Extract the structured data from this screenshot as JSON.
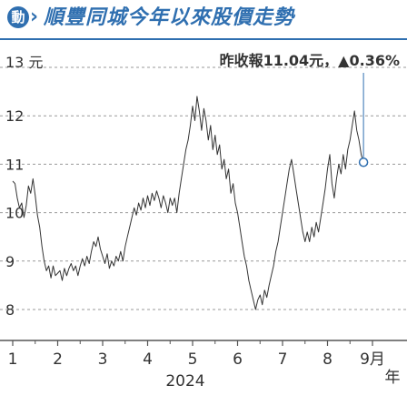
{
  "header": {
    "logo_text": "動",
    "title": "順豐同城今年以來股價走勢",
    "brand_color": "#2f6fb0"
  },
  "chart_data": {
    "type": "line",
    "y_unit_label": "13 元",
    "y_ticks": [
      "12",
      "11",
      "10",
      "9",
      "8"
    ],
    "ylim": [
      7.7,
      13.3
    ],
    "x_ticks": [
      "1",
      "2",
      "3",
      "4",
      "5",
      "6",
      "7",
      "8",
      "9月"
    ],
    "year_label": "2024",
    "year_char": "年",
    "annotation": "昨收報11.04元，▲0.36%",
    "line_color": "#333333",
    "marker_color": "#2f6fb0",
    "grid": true,
    "series": [
      {
        "values": [
          [
            1.0,
            10.65
          ],
          [
            1.05,
            10.6
          ],
          [
            1.1,
            10.3
          ],
          [
            1.15,
            10.1
          ],
          [
            1.2,
            10.2
          ],
          [
            1.25,
            9.9
          ],
          [
            1.3,
            10.15
          ],
          [
            1.35,
            10.55
          ],
          [
            1.4,
            10.4
          ],
          [
            1.45,
            10.7
          ],
          [
            1.5,
            10.35
          ],
          [
            1.55,
            9.95
          ],
          [
            1.6,
            9.7
          ],
          [
            1.65,
            9.3
          ],
          [
            1.7,
            9.0
          ],
          [
            1.75,
            8.8
          ],
          [
            1.8,
            8.9
          ],
          [
            1.85,
            8.65
          ],
          [
            1.9,
            8.9
          ],
          [
            1.95,
            8.7
          ],
          [
            2.0,
            8.75
          ],
          [
            2.05,
            8.8
          ],
          [
            2.1,
            8.6
          ],
          [
            2.15,
            8.85
          ],
          [
            2.2,
            8.7
          ],
          [
            2.25,
            8.85
          ],
          [
            2.3,
            8.95
          ],
          [
            2.35,
            8.8
          ],
          [
            2.4,
            8.9
          ],
          [
            2.45,
            8.7
          ],
          [
            2.5,
            8.9
          ],
          [
            2.55,
            9.05
          ],
          [
            2.6,
            8.9
          ],
          [
            2.65,
            9.1
          ],
          [
            2.7,
            8.95
          ],
          [
            2.75,
            9.2
          ],
          [
            2.8,
            9.4
          ],
          [
            2.85,
            9.3
          ],
          [
            2.9,
            9.5
          ],
          [
            2.95,
            9.25
          ],
          [
            3.0,
            9.1
          ],
          [
            3.05,
            8.95
          ],
          [
            3.1,
            9.15
          ],
          [
            3.15,
            8.85
          ],
          [
            3.2,
            9.0
          ],
          [
            3.25,
            8.9
          ],
          [
            3.3,
            9.1
          ],
          [
            3.35,
            9.0
          ],
          [
            3.4,
            9.2
          ],
          [
            3.45,
            9.0
          ],
          [
            3.5,
            9.3
          ],
          [
            3.55,
            9.5
          ],
          [
            3.6,
            9.7
          ],
          [
            3.65,
            9.9
          ],
          [
            3.7,
            10.1
          ],
          [
            3.75,
            9.95
          ],
          [
            3.8,
            10.2
          ],
          [
            3.85,
            10.05
          ],
          [
            3.9,
            10.3
          ],
          [
            3.95,
            10.1
          ],
          [
            4.0,
            10.35
          ],
          [
            4.05,
            10.15
          ],
          [
            4.1,
            10.4
          ],
          [
            4.15,
            10.25
          ],
          [
            4.2,
            10.45
          ],
          [
            4.25,
            10.3
          ],
          [
            4.3,
            10.1
          ],
          [
            4.35,
            10.35
          ],
          [
            4.4,
            10.2
          ],
          [
            4.45,
            10.0
          ],
          [
            4.5,
            10.3
          ],
          [
            4.55,
            10.15
          ],
          [
            4.6,
            10.3
          ],
          [
            4.65,
            10.0
          ],
          [
            4.7,
            10.4
          ],
          [
            4.75,
            10.7
          ],
          [
            4.8,
            11.0
          ],
          [
            4.85,
            11.3
          ],
          [
            4.9,
            11.5
          ],
          [
            4.95,
            11.8
          ],
          [
            5.0,
            12.2
          ],
          [
            5.05,
            11.9
          ],
          [
            5.1,
            12.4
          ],
          [
            5.15,
            12.1
          ],
          [
            5.2,
            11.7
          ],
          [
            5.25,
            12.15
          ],
          [
            5.3,
            11.9
          ],
          [
            5.35,
            11.5
          ],
          [
            5.4,
            11.8
          ],
          [
            5.45,
            11.3
          ],
          [
            5.5,
            11.6
          ],
          [
            5.55,
            11.2
          ],
          [
            5.6,
            11.4
          ],
          [
            5.65,
            10.9
          ],
          [
            5.7,
            11.1
          ],
          [
            5.75,
            10.7
          ],
          [
            5.8,
            10.9
          ],
          [
            5.85,
            10.4
          ],
          [
            5.9,
            10.6
          ],
          [
            5.95,
            10.2
          ],
          [
            6.0,
            10.0
          ],
          [
            6.05,
            9.7
          ],
          [
            6.1,
            9.4
          ],
          [
            6.15,
            9.1
          ],
          [
            6.2,
            8.9
          ],
          [
            6.25,
            8.6
          ],
          [
            6.3,
            8.4
          ],
          [
            6.35,
            8.2
          ],
          [
            6.4,
            8.0
          ],
          [
            6.45,
            8.2
          ],
          [
            6.5,
            8.3
          ],
          [
            6.55,
            8.1
          ],
          [
            6.6,
            8.4
          ],
          [
            6.65,
            8.25
          ],
          [
            6.7,
            8.5
          ],
          [
            6.75,
            8.7
          ],
          [
            6.8,
            8.9
          ],
          [
            6.85,
            9.2
          ],
          [
            6.9,
            9.4
          ],
          [
            6.95,
            9.7
          ],
          [
            7.0,
            10.0
          ],
          [
            7.05,
            10.3
          ],
          [
            7.1,
            10.6
          ],
          [
            7.15,
            10.9
          ],
          [
            7.2,
            11.1
          ],
          [
            7.25,
            10.8
          ],
          [
            7.3,
            10.5
          ],
          [
            7.35,
            10.2
          ],
          [
            7.4,
            9.9
          ],
          [
            7.45,
            9.6
          ],
          [
            7.5,
            9.4
          ],
          [
            7.55,
            9.6
          ],
          [
            7.6,
            9.4
          ],
          [
            7.65,
            9.7
          ],
          [
            7.7,
            9.5
          ],
          [
            7.75,
            9.8
          ],
          [
            7.8,
            9.6
          ],
          [
            7.85,
            9.9
          ],
          [
            7.9,
            10.2
          ],
          [
            7.95,
            10.5
          ],
          [
            8.0,
            10.9
          ],
          [
            8.05,
            11.2
          ],
          [
            8.1,
            10.6
          ],
          [
            8.15,
            10.3
          ],
          [
            8.2,
            10.7
          ],
          [
            8.25,
            11.0
          ],
          [
            8.3,
            10.8
          ],
          [
            8.35,
            11.2
          ],
          [
            8.4,
            10.9
          ],
          [
            8.45,
            11.3
          ],
          [
            8.5,
            11.5
          ],
          [
            8.55,
            11.8
          ],
          [
            8.6,
            12.1
          ],
          [
            8.65,
            11.7
          ],
          [
            8.7,
            11.5
          ],
          [
            8.75,
            11.2
          ],
          [
            8.8,
            11.04
          ]
        ]
      }
    ]
  }
}
